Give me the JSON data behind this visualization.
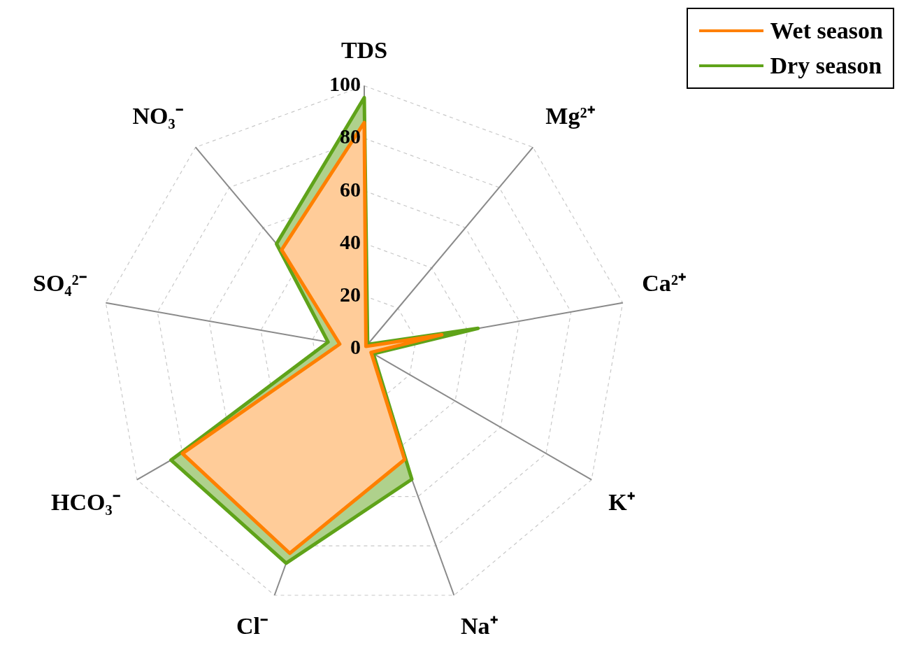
{
  "chart_data": {
    "type": "radar",
    "categories": [
      "TDS",
      "Mg²⁺",
      "Ca²⁺",
      "K⁺",
      "Na⁺",
      "Cl⁻",
      "HCO₃⁻",
      "SO₄²⁻",
      "NO₃⁻"
    ],
    "series": [
      {
        "name": "Wet season",
        "color": "#ff8000",
        "values": [
          86,
          1,
          30,
          3,
          45,
          83,
          80,
          9.5,
          49
        ]
      },
      {
        "name": "Dry season",
        "color": "#5fa319",
        "values": [
          95.5,
          2,
          44,
          4,
          53,
          87,
          85,
          14,
          52
        ]
      }
    ],
    "ylim": [
      0,
      100
    ],
    "yticks": [
      0,
      20,
      40,
      60,
      80,
      100
    ],
    "grid": true,
    "legend": "top right",
    "marker": "none"
  }
}
